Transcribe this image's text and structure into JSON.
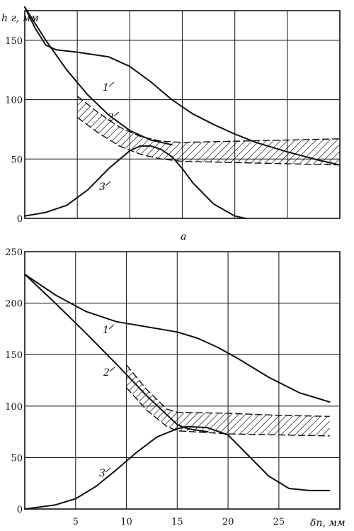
{
  "chart_data": [
    {
      "type": "line",
      "panel_label": "a",
      "ylabel": "h г, мм",
      "xlabel": "",
      "xlim": [
        0,
        30
      ],
      "ylim": [
        0,
        175
      ],
      "yticks": [
        0,
        50,
        100,
        150
      ],
      "xticks": [
        5,
        10,
        15,
        20,
        25
      ],
      "show_xtick_labels": false,
      "grid": true,
      "series": [
        {
          "name": "1",
          "x": [
            0,
            1,
            2,
            3,
            5,
            8,
            10,
            12,
            14,
            16,
            18,
            20,
            22,
            25,
            28,
            30
          ],
          "y": [
            178,
            160,
            146,
            142,
            140,
            136,
            128,
            115,
            100,
            88,
            79,
            71,
            64,
            56,
            49,
            45
          ]
        },
        {
          "name": "2",
          "x": [
            0,
            2,
            4,
            6,
            8,
            10,
            12,
            14
          ],
          "y": [
            178,
            150,
            125,
            104,
            87,
            74,
            66,
            62
          ]
        },
        {
          "name": "3",
          "x": [
            0,
            2,
            4,
            6,
            8,
            10,
            11,
            12,
            13,
            14,
            15,
            16,
            18,
            20,
            21
          ],
          "y": [
            2,
            5,
            11,
            24,
            42,
            57,
            61,
            61,
            58,
            52,
            42,
            30,
            12,
            2,
            0
          ]
        }
      ],
      "bands": [
        {
          "x": [
            5,
            7,
            9,
            11,
            13,
            15,
            20,
            25,
            30
          ],
          "upper": [
            103,
            89,
            77,
            69,
            65,
            64,
            65,
            66,
            67
          ],
          "lower": [
            85,
            72,
            61,
            54,
            50,
            48,
            47,
            46,
            45
          ]
        }
      ],
      "curve_labels": [
        "1",
        "2",
        "3"
      ]
    },
    {
      "type": "line",
      "ylabel": "",
      "xlabel": "δп, мм",
      "xlim": [
        0,
        31
      ],
      "ylim": [
        0,
        250
      ],
      "yticks": [
        0,
        50,
        100,
        150,
        200,
        250
      ],
      "xticks": [
        5,
        10,
        15,
        20,
        25
      ],
      "show_xtick_labels": true,
      "grid": true,
      "series": [
        {
          "name": "1",
          "x": [
            0,
            3,
            6,
            9,
            12,
            15,
            17,
            19,
            21,
            24,
            27,
            30
          ],
          "y": [
            228,
            208,
            192,
            182,
            177,
            172,
            166,
            157,
            146,
            128,
            113,
            104
          ]
        },
        {
          "name": "2",
          "x": [
            0,
            3,
            6,
            9,
            12,
            15,
            16,
            18
          ],
          "y": [
            228,
            200,
            171,
            141,
            110,
            82,
            78,
            75
          ]
        },
        {
          "name": "3",
          "x": [
            0,
            3,
            5,
            7,
            9,
            11,
            13,
            15,
            16,
            18,
            20,
            22,
            24,
            26,
            28,
            30
          ],
          "y": [
            0,
            4,
            10,
            22,
            38,
            55,
            70,
            78,
            80,
            79,
            72,
            52,
            32,
            20,
            18,
            18
          ]
        }
      ],
      "bands": [
        {
          "x": [
            10,
            12,
            14,
            15,
            20,
            25,
            30
          ],
          "upper": [
            140,
            116,
            97,
            94,
            93,
            91,
            90
          ],
          "lower": [
            118,
            96,
            80,
            76,
            73,
            72,
            71
          ]
        }
      ],
      "curve_labels": [
        "1",
        "2",
        "3"
      ]
    }
  ]
}
